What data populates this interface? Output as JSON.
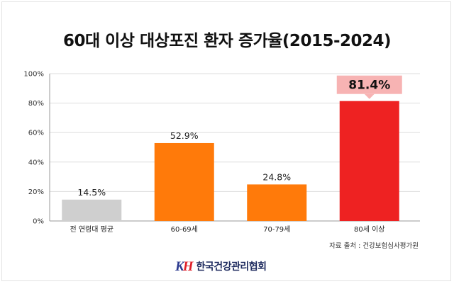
{
  "title": "60대 이상 대상포진 환자 증가율(2015-2024)",
  "source": "자료 출처 : 건강보험심사평가원",
  "logo": {
    "text": "한국건강관리협회"
  },
  "chart_data": {
    "type": "bar",
    "title": "60대 이상 대상포진 환자 증가율(2015-2024)",
    "xlabel": "",
    "ylabel": "",
    "ylim": [
      0,
      100
    ],
    "yticks": [
      "0%",
      "20%",
      "40%",
      "60%",
      "80%",
      "100%"
    ],
    "grid": true,
    "categories": [
      "전 연령대 평균",
      "60-69세",
      "70-79세",
      "80세 이상"
    ],
    "values": [
      14.5,
      52.9,
      24.8,
      81.4
    ],
    "labels": [
      "14.5%",
      "52.9%",
      "24.8%",
      "81.4%"
    ],
    "highlight_index": 3,
    "colors": [
      "#cfcfcf",
      "#ff7a0a",
      "#ff7a0a",
      "#ee2222"
    ],
    "highlight_label_bg": "#f7b3b3"
  }
}
